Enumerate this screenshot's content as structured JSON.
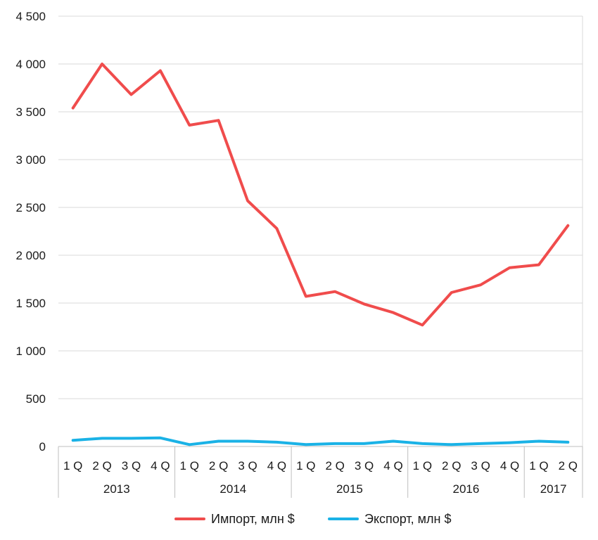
{
  "chart_data": {
    "type": "line",
    "categories": [
      "1 Q",
      "2 Q",
      "3 Q",
      "4 Q",
      "1 Q",
      "2 Q",
      "3 Q",
      "4 Q",
      "1 Q",
      "2 Q",
      "3 Q",
      "4 Q",
      "1 Q",
      "2 Q",
      "3 Q",
      "4 Q",
      "1 Q",
      "2 Q"
    ],
    "year_groups": [
      {
        "label": "2013",
        "count": 4
      },
      {
        "label": "2014",
        "count": 4
      },
      {
        "label": "2015",
        "count": 4
      },
      {
        "label": "2016",
        "count": 4
      },
      {
        "label": "2017",
        "count": 2
      }
    ],
    "series": [
      {
        "name": "Импорт, млн $",
        "color": "#f04c4c",
        "values": [
          3540,
          4000,
          3680,
          3930,
          3360,
          3410,
          2570,
          2280,
          1570,
          1620,
          1490,
          1400,
          1270,
          1610,
          1690,
          1870,
          1900,
          2310
        ]
      },
      {
        "name": "Экспорт, млн $",
        "color": "#1ab2e6",
        "values": [
          65,
          85,
          85,
          90,
          20,
          55,
          55,
          45,
          20,
          30,
          30,
          55,
          30,
          20,
          30,
          40,
          55,
          45
        ]
      }
    ],
    "y_ticks": [
      "0",
      "500",
      "1 000",
      "1 500",
      "2 000",
      "2 500",
      "3 000",
      "3 500",
      "4 000",
      "4 500"
    ],
    "ylim": [
      0,
      4500
    ],
    "grid": true,
    "legend_position": "bottom"
  }
}
